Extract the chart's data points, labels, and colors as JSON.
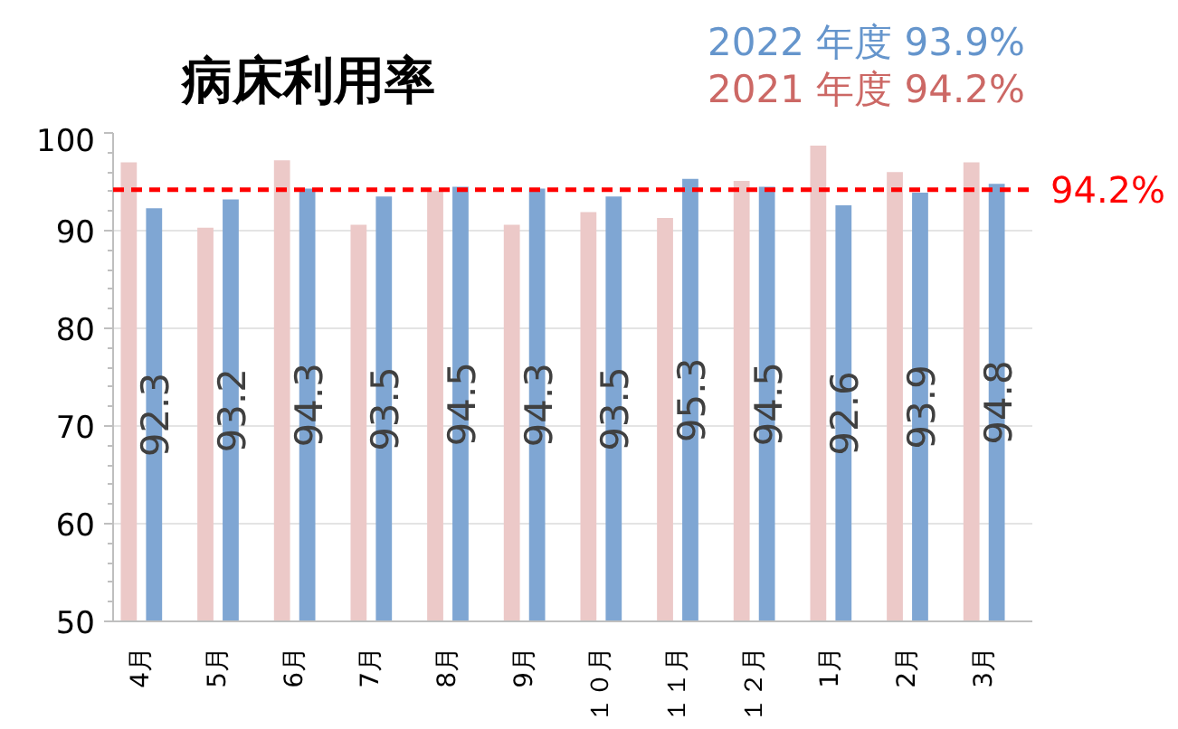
{
  "chart_data": {
    "type": "bar",
    "title": "病床利用率",
    "categories": [
      "4月",
      "5月",
      "6月",
      "7月",
      "8月",
      "9月",
      "１０月",
      "１１月",
      "１２月",
      "1月",
      "2月",
      "3月"
    ],
    "series": [
      {
        "name": "2021 年度 94.2%",
        "color": "#ecc9c8",
        "values": [
          97.0,
          90.3,
          97.2,
          90.6,
          94.1,
          90.6,
          91.9,
          91.3,
          95.1,
          98.7,
          96.0,
          97.0
        ]
      },
      {
        "name": "2022 年度 93.9%",
        "color": "#7fa6d3",
        "values": [
          92.3,
          93.2,
          94.3,
          93.5,
          94.5,
          94.3,
          93.5,
          95.3,
          94.5,
          92.6,
          93.9,
          94.8
        ],
        "value_labels": [
          "92.3",
          "93.2",
          "94.3",
          "93.5",
          "94.5",
          "94.3",
          "93.5",
          "95.3",
          "94.5",
          "92.6",
          "93.9",
          "94.8"
        ]
      }
    ],
    "ylim": [
      50,
      100
    ],
    "yticks": [
      50,
      60,
      70,
      80,
      90,
      100
    ],
    "grid": "y",
    "ref_lines": [
      {
        "axis": "y",
        "value": 94.2,
        "label": "94.2%",
        "color": "#ff0000",
        "line_style": "dashed"
      }
    ]
  }
}
